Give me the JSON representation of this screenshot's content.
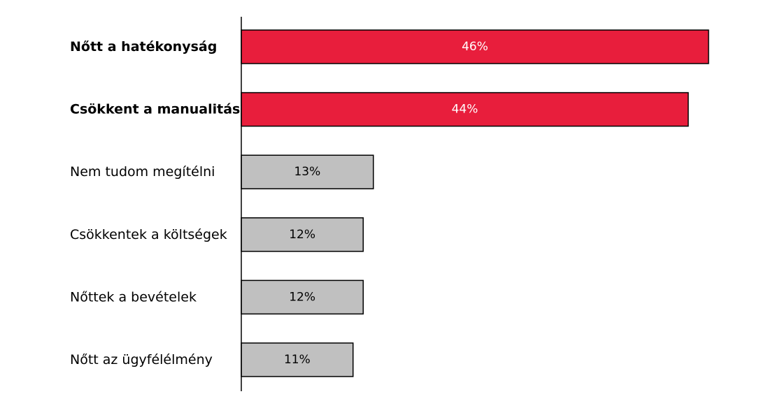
{
  "chart_data": {
    "type": "bar",
    "orientation": "horizontal",
    "categories": [
      "Nőtt a hatékonyság",
      "Csökkent a manualitás",
      "Nem tudom megítélni",
      "Csökkentek a költségek",
      "Nőttek a bevételek",
      "Nőtt az ügyfélélmény"
    ],
    "values": [
      46,
      44,
      13,
      12,
      12,
      11
    ],
    "value_labels": [
      "46%",
      "44%",
      "13%",
      "12%",
      "12%",
      "11%"
    ],
    "highlighted": [
      true,
      true,
      false,
      false,
      false,
      false
    ],
    "unit": "%",
    "xlim": [
      0,
      46
    ],
    "grid": false,
    "legend": "none",
    "colors": {
      "highlight": "#e81e3c",
      "normal": "#c0c0c0",
      "border": "#000000",
      "highlight_label": "#ffffff",
      "normal_label": "#000000"
    }
  }
}
